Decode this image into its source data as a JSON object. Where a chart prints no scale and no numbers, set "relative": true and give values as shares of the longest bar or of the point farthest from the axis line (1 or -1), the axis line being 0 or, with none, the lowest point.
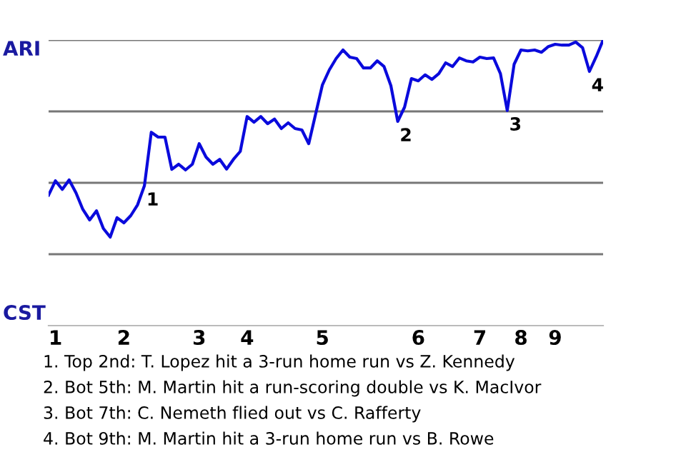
{
  "chart_data": {
    "type": "line",
    "relative": true,
    "categories": [
      null,
      "1",
      null,
      null,
      null,
      null,
      null,
      null,
      null,
      null,
      null,
      "2",
      null,
      null,
      null,
      null,
      null,
      null,
      null,
      null,
      null,
      null,
      "3",
      null,
      null,
      null,
      null,
      null,
      null,
      "4",
      null,
      null,
      null,
      null,
      null,
      null,
      null,
      null,
      null,
      null,
      "5",
      null,
      null,
      null,
      null,
      null,
      null,
      null,
      null,
      null,
      null,
      null,
      null,
      null,
      "6",
      null,
      null,
      null,
      null,
      null,
      null,
      null,
      null,
      "7",
      null,
      null,
      null,
      null,
      null,
      "8",
      null,
      null,
      null,
      null,
      "9",
      null,
      null,
      null,
      null,
      null,
      null,
      null
    ],
    "series": [
      {
        "color": "#0a0adc",
        "values": [
          0.457,
          0.507,
          0.477,
          0.51,
          0.465,
          0.407,
          0.37,
          0.402,
          0.34,
          0.31,
          0.378,
          0.36,
          0.385,
          0.423,
          0.49,
          0.677,
          0.66,
          0.66,
          0.547,
          0.565,
          0.545,
          0.565,
          0.637,
          0.59,
          0.565,
          0.582,
          0.548,
          0.582,
          0.61,
          0.732,
          0.712,
          0.732,
          0.707,
          0.723,
          0.69,
          0.71,
          0.69,
          0.685,
          0.637,
          0.74,
          0.843,
          0.895,
          0.935,
          0.965,
          0.94,
          0.935,
          0.902,
          0.902,
          0.927,
          0.907,
          0.84,
          0.715,
          0.765,
          0.865,
          0.857,
          0.878,
          0.862,
          0.882,
          0.92,
          0.907,
          0.937,
          0.927,
          0.923,
          0.94,
          0.935,
          0.937,
          0.882,
          0.753,
          0.915,
          0.965,
          0.962,
          0.965,
          0.957,
          0.977,
          0.985,
          0.982,
          0.982,
          0.993,
          0.973,
          0.89,
          0.942,
          1
        ]
      }
    ],
    "marker": "none",
    "line_style": "solid",
    "ref_lines": [
      {
        "axis": "y",
        "value": 0.25,
        "color": "#777777"
      },
      {
        "axis": "y",
        "value": 0.5,
        "color": "#777777"
      },
      {
        "axis": "y",
        "value": 0.75,
        "color": "#777777"
      },
      {
        "axis": "y",
        "value": 1,
        "color": "#777777"
      }
    ],
    "annotations": [
      "ARI",
      "CST",
      {
        "text": "1",
        "y": 0.49
      },
      {
        "text": "2",
        "y": 0.715
      },
      {
        "text": "3",
        "y": 0.753
      },
      {
        "text": "4",
        "y": 0.89
      },
      "1. Top 2nd: T. Lopez hit a 3-run home run vs Z. Kennedy",
      "2. Bot 5th: M. Martin hit a run-scoring double vs K. MacIvor",
      "3. Bot 7th: C. Nemeth flied out vs C. Rafferty",
      "4. Bot 9th: M. Martin hit a 3-run home run vs B. Rowe"
    ]
  }
}
